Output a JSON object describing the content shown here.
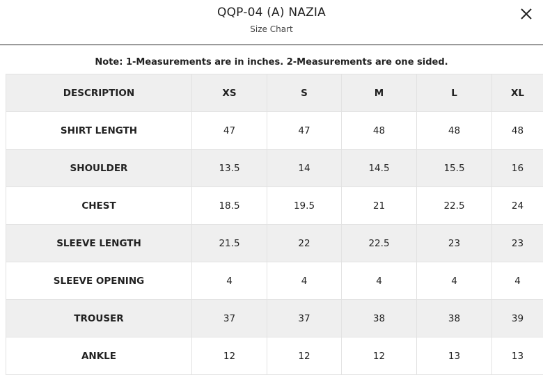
{
  "header": {
    "title": "QQP-04 (A) NAZIA",
    "subtitle": "Size Chart",
    "close_icon": "close-icon"
  },
  "note": "Note: 1-Measurements are in inches. 2-Measurements are one sided.",
  "table": {
    "columns": [
      "DESCRIPTION",
      "XS",
      "S",
      "M",
      "L",
      "XL"
    ],
    "rows": [
      {
        "label": "SHIRT LENGTH",
        "values": [
          "47",
          "47",
          "48",
          "48",
          "48"
        ]
      },
      {
        "label": "SHOULDER",
        "values": [
          "13.5",
          "14",
          "14.5",
          "15.5",
          "16"
        ]
      },
      {
        "label": "CHEST",
        "values": [
          "18.5",
          "19.5",
          "21",
          "22.5",
          "24"
        ]
      },
      {
        "label": "SLEEVE LENGTH",
        "values": [
          "21.5",
          "22",
          "22.5",
          "23",
          "23"
        ]
      },
      {
        "label": "SLEEVE OPENING",
        "values": [
          "4",
          "4",
          "4",
          "4",
          "4"
        ]
      },
      {
        "label": "TROUSER",
        "values": [
          "37",
          "37",
          "38",
          "38",
          "39"
        ]
      },
      {
        "label": "ANKLE",
        "values": [
          "12",
          "12",
          "12",
          "13",
          "13"
        ]
      }
    ]
  }
}
